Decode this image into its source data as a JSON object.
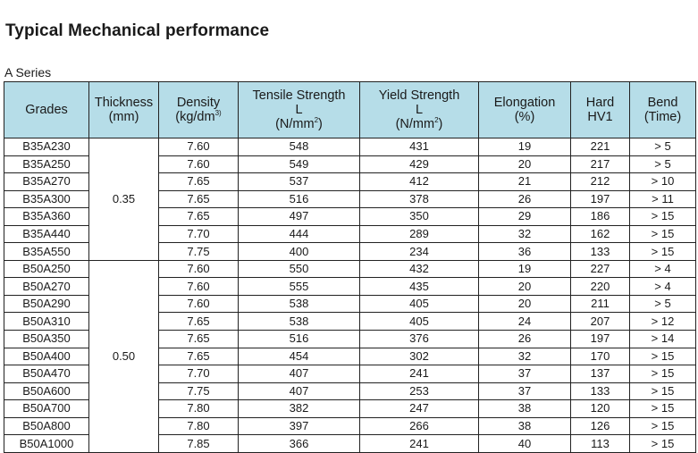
{
  "title": "Typical Mechanical performance",
  "series_label": "A Series",
  "headers": {
    "grades": "Grades",
    "thickness": {
      "line1": "Thickness",
      "line2": "(mm)"
    },
    "density": {
      "line1": "Density",
      "line2": "(kg/dm",
      "sup": "3)"
    },
    "tensile": {
      "line1": "Tensile Strength",
      "line2": "L",
      "line3": "(N/mm",
      "sup": "2",
      "close": ")"
    },
    "yield": {
      "line1": "Yield Strength",
      "line2": "L",
      "line3": "(N/mm",
      "sup": "2",
      "close": ")"
    },
    "elongation": {
      "line1": "Elongation",
      "line2": "(%)"
    },
    "hard": {
      "line1": "Hard",
      "line2": "HV1"
    },
    "bend": {
      "line1": "Bend",
      "line2": "(Time)"
    }
  },
  "groups": [
    {
      "thickness": "0.35",
      "rows": [
        [
          "B35A230",
          "7.60",
          "548",
          "431",
          "19",
          "221",
          "> 5"
        ],
        [
          "B35A250",
          "7.60",
          "549",
          "429",
          "20",
          "217",
          "> 5"
        ],
        [
          "B35A270",
          "7.65",
          "537",
          "412",
          "21",
          "212",
          "> 10"
        ],
        [
          "B35A300",
          "7.65",
          "516",
          "378",
          "26",
          "197",
          "> 11"
        ],
        [
          "B35A360",
          "7.65",
          "497",
          "350",
          "29",
          "186",
          "> 15"
        ],
        [
          "B35A440",
          "7.70",
          "444",
          "289",
          "32",
          "162",
          "> 15"
        ],
        [
          "B35A550",
          "7.75",
          "400",
          "234",
          "36",
          "133",
          "> 15"
        ]
      ]
    },
    {
      "thickness": "0.50",
      "rows": [
        [
          "B50A250",
          "7.60",
          "550",
          "432",
          "19",
          "227",
          "> 4"
        ],
        [
          "B50A270",
          "7.60",
          "555",
          "435",
          "20",
          "220",
          "> 4"
        ],
        [
          "B50A290",
          "7.60",
          "538",
          "405",
          "20",
          "211",
          "> 5"
        ],
        [
          "B50A310",
          "7.65",
          "538",
          "405",
          "24",
          "207",
          "> 12"
        ],
        [
          "B50A350",
          "7.65",
          "516",
          "376",
          "26",
          "197",
          "> 14"
        ],
        [
          "B50A400",
          "7.65",
          "454",
          "302",
          "32",
          "170",
          "> 15"
        ],
        [
          "B50A470",
          "7.70",
          "407",
          "241",
          "37",
          "137",
          "> 15"
        ],
        [
          "B50A600",
          "7.75",
          "407",
          "253",
          "37",
          "133",
          "> 15"
        ],
        [
          "B50A700",
          "7.80",
          "382",
          "247",
          "38",
          "120",
          "> 15"
        ],
        [
          "B50A800",
          "7.80",
          "397",
          "266",
          "38",
          "126",
          "> 15"
        ],
        [
          "B50A1000",
          "7.85",
          "366",
          "241",
          "40",
          "113",
          "> 15"
        ]
      ]
    }
  ]
}
